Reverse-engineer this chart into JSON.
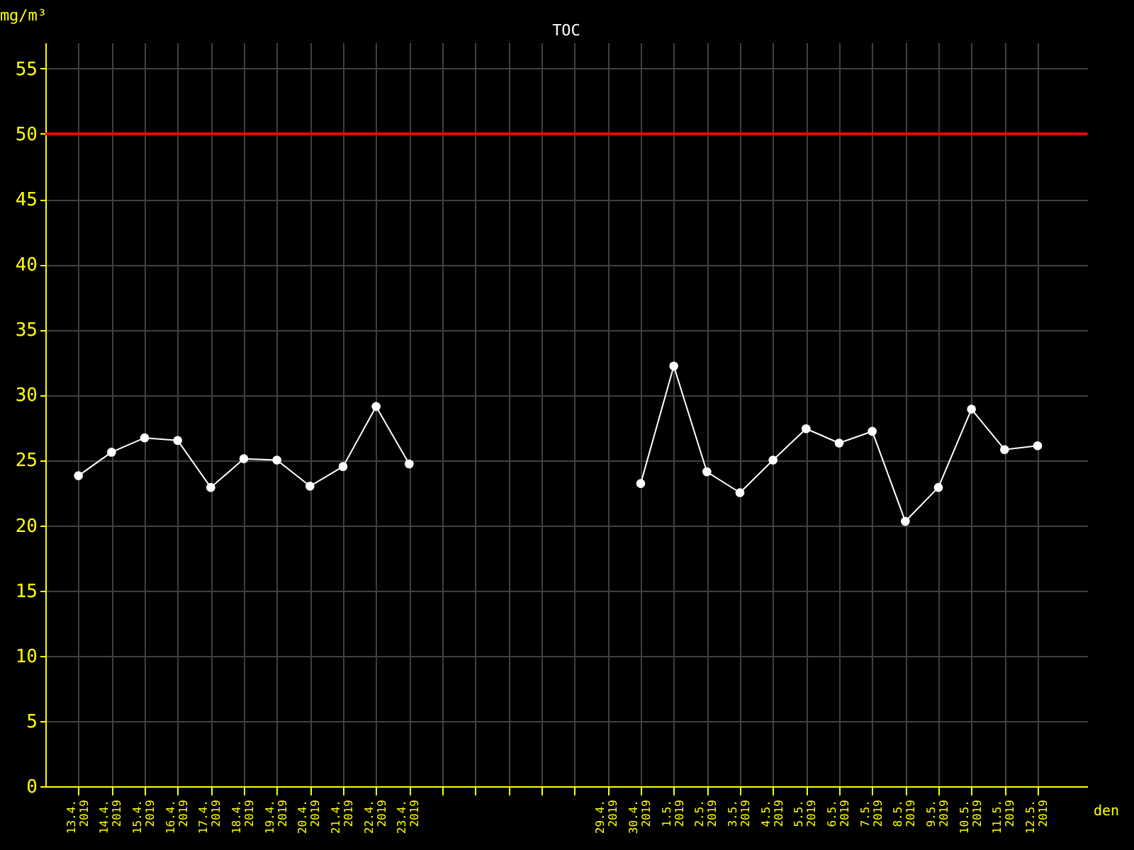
{
  "chart_data": {
    "type": "line",
    "title": "TOC",
    "xlabel": "den",
    "ylabel": "mg/m³",
    "x": [
      "2019-04-13",
      "2019-04-14",
      "2019-04-15",
      "2019-04-16",
      "2019-04-17",
      "2019-04-18",
      "2019-04-19",
      "2019-04-20",
      "2019-04-21",
      "2019-04-22",
      "2019-04-23",
      "2019-04-29",
      "2019-04-30",
      "2019-05-01",
      "2019-05-02",
      "2019-05-03",
      "2019-05-04",
      "2019-05-05",
      "2019-05-06",
      "2019-05-07",
      "2019-05-08",
      "2019-05-09",
      "2019-05-10",
      "2019-05-11",
      "2019-05-12"
    ],
    "series": [
      {
        "color": "#ffffff",
        "values": [
          23.8,
          25.6,
          26.7,
          26.5,
          22.9,
          25.1,
          25.0,
          23.0,
          24.5,
          29.1,
          24.7,
          null,
          23.2,
          32.2,
          24.1,
          22.5,
          25.0,
          27.4,
          26.3,
          27.2,
          20.3,
          22.9,
          28.9,
          25.8,
          26.1
        ]
      }
    ],
    "xlim": [
      "2019-04-12",
      "2019-05-13T12:00"
    ],
    "xticks": [
      {
        "value": "2019-04-13",
        "label": "13.4. 2019"
      },
      {
        "value": "2019-04-14",
        "label": "14.4. 2019"
      },
      {
        "value": "2019-04-15",
        "label": "15.4. 2019"
      },
      {
        "value": "2019-04-16",
        "label": "16.4. 2019"
      },
      {
        "value": "2019-04-17",
        "label": "17.4. 2019"
      },
      {
        "value": "2019-04-18",
        "label": "18.4. 2019"
      },
      {
        "value": "2019-04-19",
        "label": "19.4. 2019"
      },
      {
        "value": "2019-04-20",
        "label": "20.4. 2019"
      },
      {
        "value": "2019-04-21",
        "label": "21.4. 2019"
      },
      {
        "value": "2019-04-22",
        "label": "22.4. 2019"
      },
      {
        "value": "2019-04-23",
        "label": "23.4. 2019"
      },
      {
        "value": "2019-04-24",
        "label": null
      },
      {
        "value": "2019-04-25",
        "label": null
      },
      {
        "value": "2019-04-26",
        "label": null
      },
      {
        "value": "2019-04-27",
        "label": null
      },
      {
        "value": "2019-04-28",
        "label": null
      },
      {
        "value": "2019-04-29",
        "label": "29.4. 2019"
      },
      {
        "value": "2019-04-30",
        "label": "30.4. 2019"
      },
      {
        "value": "2019-05-01",
        "label": "1.5. 2019"
      },
      {
        "value": "2019-05-02",
        "label": "2.5. 2019"
      },
      {
        "value": "2019-05-03",
        "label": "3.5. 2019"
      },
      {
        "value": "2019-05-04",
        "label": "4.5. 2019"
      },
      {
        "value": "2019-05-05",
        "label": "5.5. 2019"
      },
      {
        "value": "2019-05-06",
        "label": "6.5. 2019"
      },
      {
        "value": "2019-05-07",
        "label": "7.5. 2019"
      },
      {
        "value": "2019-05-08",
        "label": "8.5. 2019"
      },
      {
        "value": "2019-05-09",
        "label": "9.5. 2019"
      },
      {
        "value": "2019-05-10",
        "label": "10.5. 2019"
      },
      {
        "value": "2019-05-11",
        "label": "11.5. 2019"
      },
      {
        "value": "2019-05-12",
        "label": "12.5. 2019"
      }
    ],
    "ylim": [
      0,
      57
    ],
    "yticks": [
      0,
      5,
      10,
      15,
      20,
      25,
      30,
      35,
      40,
      45,
      50,
      55
    ],
    "ref_lines": [
      {
        "axis": "y",
        "value": 50,
        "color": "#ff0000"
      }
    ],
    "grid": true,
    "marker": "circle",
    "line_style": "solid"
  }
}
